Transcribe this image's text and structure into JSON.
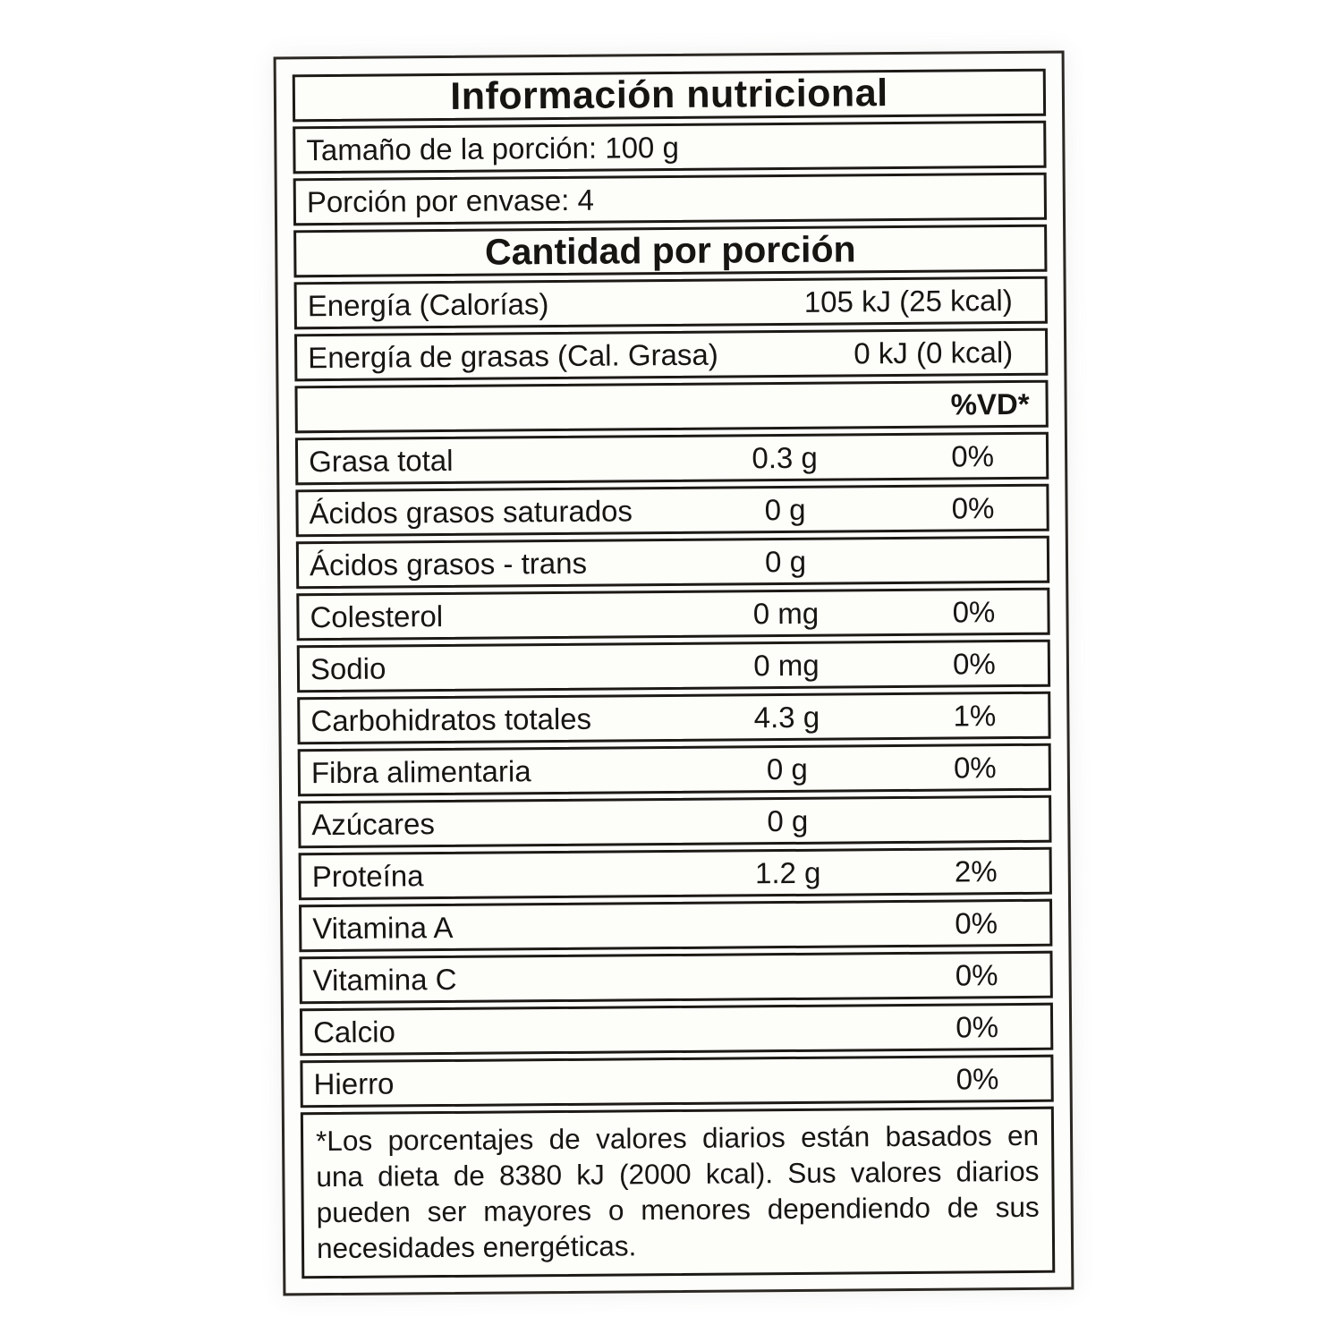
{
  "label": {
    "title": "Información nutricional",
    "serving_size": "Tamaño de la porción: 100 g",
    "servings_per_container": "Porción por envase: 4",
    "amount_header": "Cantidad por porción",
    "energy_rows": [
      {
        "label": "Energía (Calorías)",
        "value": "105 kJ (25 kcal)"
      },
      {
        "label": "Energía de grasas (Cal. Grasa)",
        "value": "0 kJ (0 kcal)"
      }
    ],
    "dv_header": "%VD*",
    "nutrients": [
      {
        "label": "Grasa total",
        "amount": "0.3 g",
        "dv": "0%"
      },
      {
        "label": "Ácidos grasos saturados",
        "amount": "0 g",
        "dv": "0%"
      },
      {
        "label": "Ácidos grasos - trans",
        "amount": "0 g",
        "dv": ""
      },
      {
        "label": "Colesterol",
        "amount": "0 mg",
        "dv": "0%"
      },
      {
        "label": "Sodio",
        "amount": "0 mg",
        "dv": "0%"
      },
      {
        "label": "Carbohidratos totales",
        "amount": "4.3 g",
        "dv": "1%"
      },
      {
        "label": "Fibra alimentaria",
        "amount": "0 g",
        "dv": "0%"
      },
      {
        "label": "Azúcares",
        "amount": "0 g",
        "dv": ""
      },
      {
        "label": "Proteína",
        "amount": "1.2 g",
        "dv": "2%"
      },
      {
        "label": "Vitamina A",
        "amount": "",
        "dv": "0%"
      },
      {
        "label": "Vitamina C",
        "amount": "",
        "dv": "0%"
      },
      {
        "label": "Calcio",
        "amount": "",
        "dv": "0%"
      },
      {
        "label": "Hierro",
        "amount": "",
        "dv": "0%"
      }
    ],
    "footnote": "*Los porcentajes de valores diarios están basados en una dieta de 8380 kJ (2000 kcal). Sus valores diarios pueden ser mayores o menores dependiendo de sus necesidades energéticas.",
    "colors": {
      "border": "#1d1a16",
      "text": "#171512",
      "label_bg": "#fdfdfb"
    }
  }
}
